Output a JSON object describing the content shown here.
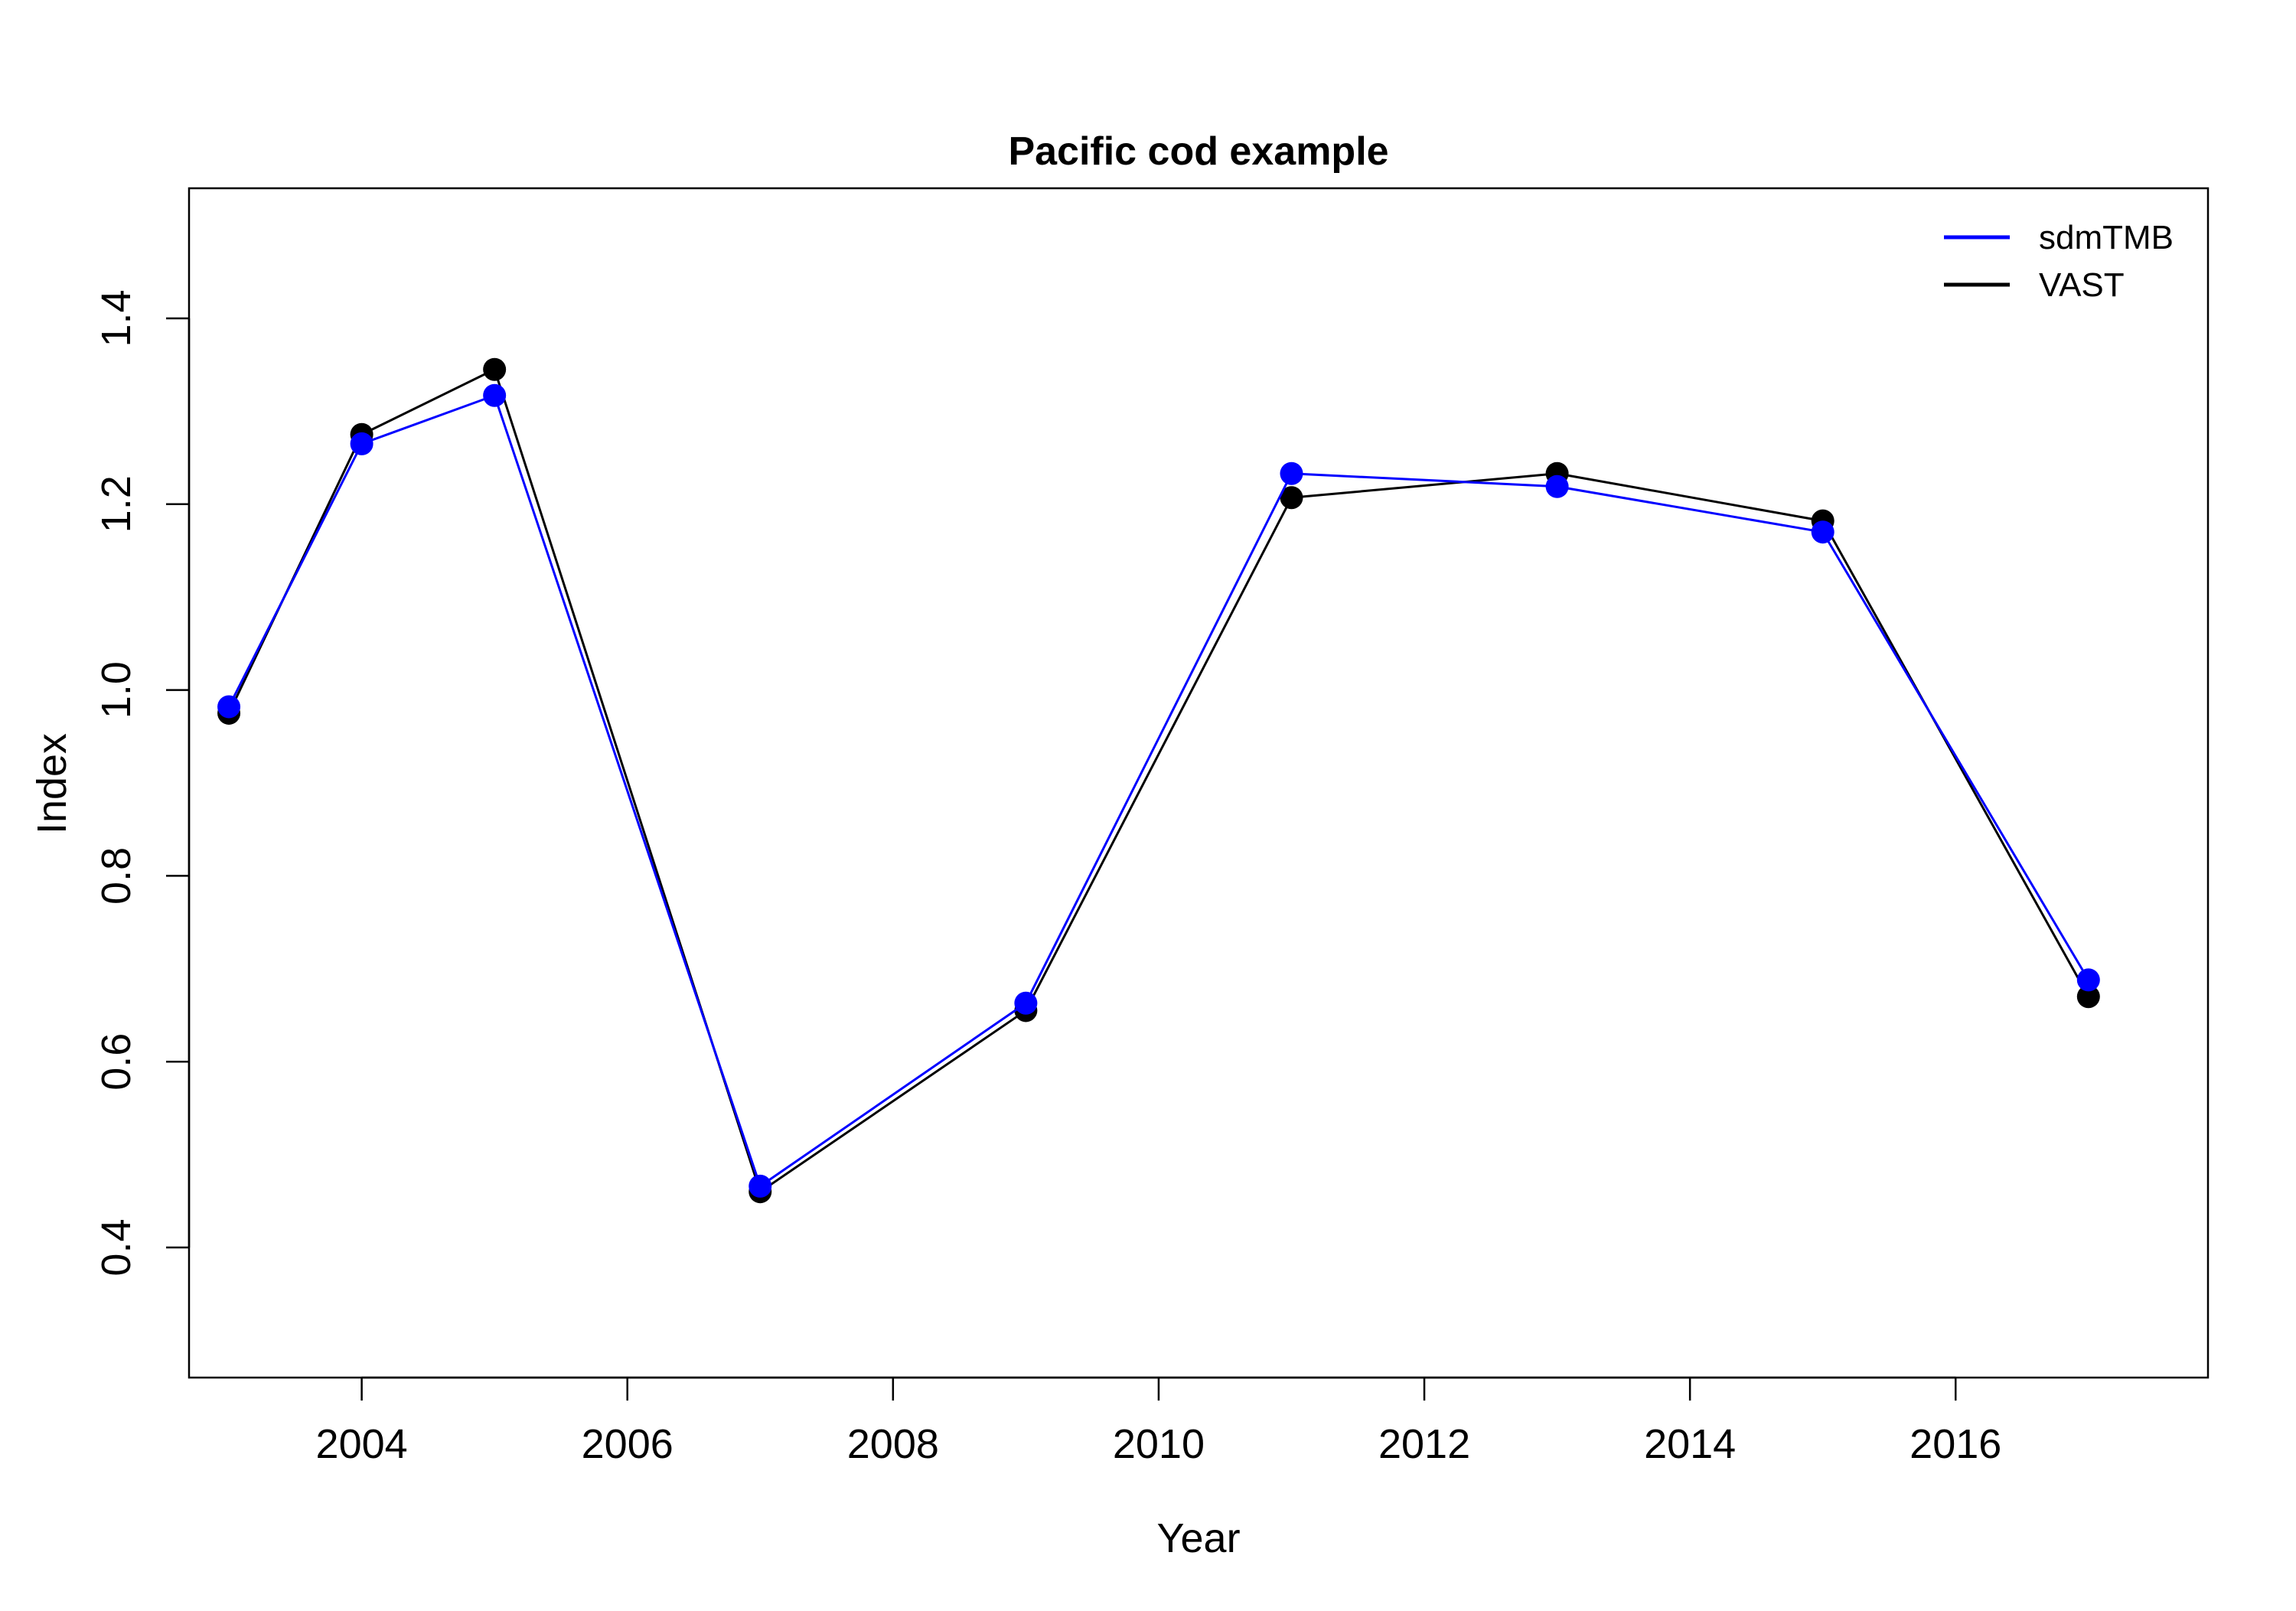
{
  "chart_data": {
    "type": "line",
    "title": "Pacific cod example",
    "xlabel": "Year",
    "ylabel": "Index",
    "xlim": [
      2002.7,
      2017.9
    ],
    "ylim": [
      0.26,
      1.54
    ],
    "x_ticks": [
      2004,
      2006,
      2008,
      2010,
      2012,
      2014,
      2016
    ],
    "y_ticks": [
      0.4,
      0.6,
      0.8,
      1.0,
      1.2,
      1.4
    ],
    "grid": false,
    "legend_position": "top-right",
    "x": [
      2003,
      2004,
      2005,
      2007,
      2009,
      2011,
      2013,
      2015,
      2017
    ],
    "series": [
      {
        "name": "VAST",
        "color": "#000000",
        "marker": "filled-circle",
        "values": [
          0.975,
          1.275,
          1.345,
          0.46,
          0.655,
          1.207,
          1.233,
          1.182,
          0.67
        ]
      },
      {
        "name": "sdmTMB",
        "color": "#0000ff",
        "marker": "filled-circle",
        "values": [
          0.982,
          1.265,
          1.317,
          0.466,
          0.663,
          1.233,
          1.219,
          1.17,
          0.688
        ]
      }
    ],
    "legend_order": [
      "sdmTMB",
      "VAST"
    ]
  }
}
